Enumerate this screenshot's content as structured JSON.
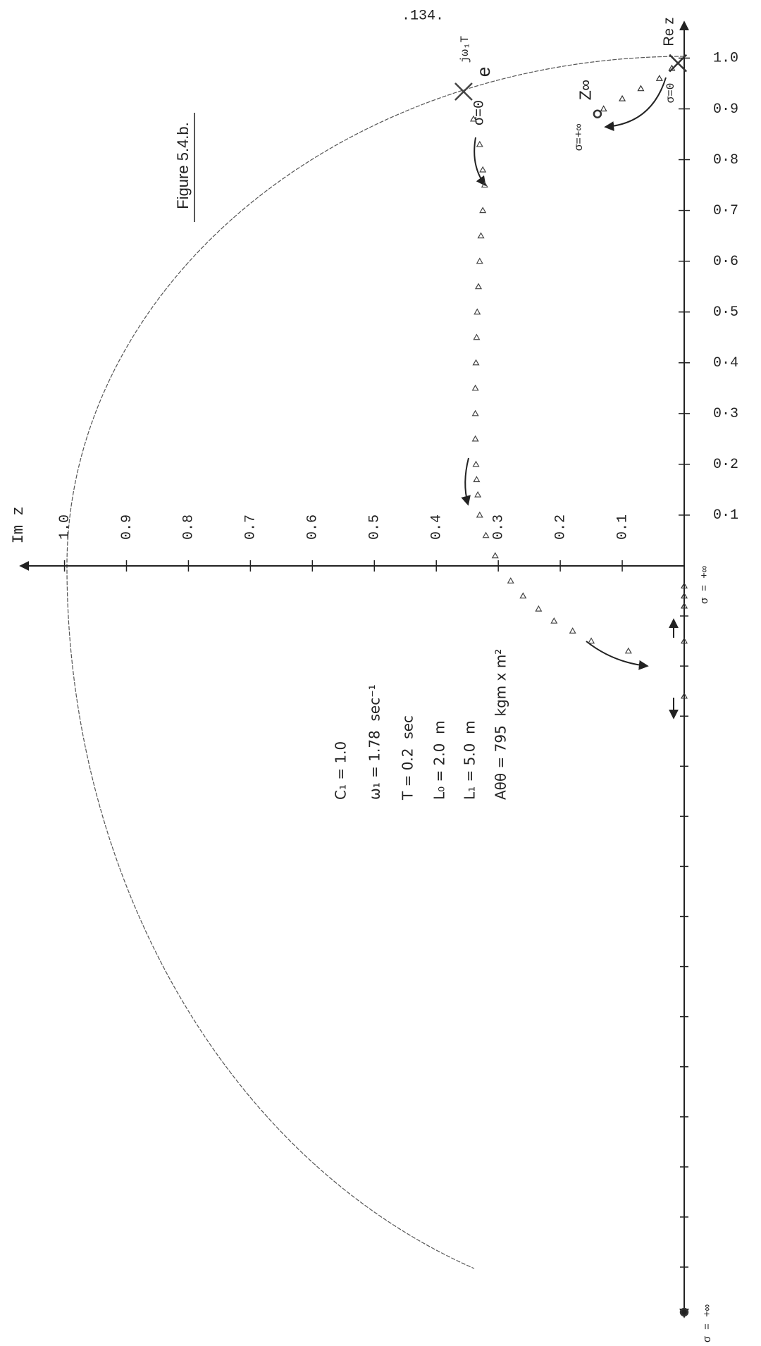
{
  "page_number": ".134.",
  "chart_data": {
    "type": "scatter",
    "title": "Figure 5.4.b.",
    "xlabel": "Im z",
    "ylabel": "Re z",
    "x_direction": "left",
    "xlim": [
      0,
      1.07
    ],
    "ylim": [
      -1.49,
      1.07
    ],
    "xticks": [
      {
        "value": 0.1,
        "label": "0.1"
      },
      {
        "value": 0.2,
        "label": "0.2"
      },
      {
        "value": 0.3,
        "label": "0.3"
      },
      {
        "value": 0.4,
        "label": "0.4"
      },
      {
        "value": 0.5,
        "label": "0.5"
      },
      {
        "value": 0.6,
        "label": "0.6"
      },
      {
        "value": 0.7,
        "label": "0.7"
      },
      {
        "value": 0.8,
        "label": "0.8"
      },
      {
        "value": 0.9,
        "label": "0.9"
      },
      {
        "value": 1.0,
        "label": "1.0"
      }
    ],
    "yticks": [
      {
        "value": 0.1,
        "label": "0·1"
      },
      {
        "value": 0.2,
        "label": "0·2"
      },
      {
        "value": 0.3,
        "label": "0·3"
      },
      {
        "value": 0.4,
        "label": "0·4"
      },
      {
        "value": 0.5,
        "label": "0·5"
      },
      {
        "value": 0.6,
        "label": "0·6"
      },
      {
        "value": 0.7,
        "label": "0·7"
      },
      {
        "value": 0.8,
        "label": "0·8"
      },
      {
        "value": 0.9,
        "label": "0·9"
      },
      {
        "value": 1.0,
        "label": "1.0"
      }
    ],
    "yminorticks": [
      -0.1,
      -0.2,
      -0.3,
      -0.4,
      -0.5,
      -0.6,
      -0.7,
      -0.8,
      -0.9,
      -1.0,
      -1.1,
      -1.2,
      -1.3,
      -1.4
    ],
    "series": [
      {
        "color": "#444444",
        "start_marker": "x",
        "x": [
          0.356,
          0.34,
          0.33,
          0.325,
          0.322,
          0.325,
          0.328,
          0.33,
          0.332,
          0.334,
          0.335,
          0.336,
          0.337,
          0.337,
          0.337,
          0.336,
          0.335,
          0.333,
          0.33,
          0.32,
          0.305,
          0.28,
          0.26,
          0.235,
          0.21,
          0.18,
          0.15,
          0.09
        ],
        "values": [
          0.934,
          0.88,
          0.83,
          0.78,
          0.75,
          0.7,
          0.65,
          0.6,
          0.55,
          0.5,
          0.45,
          0.4,
          0.35,
          0.3,
          0.25,
          0.2,
          0.17,
          0.14,
          0.1,
          0.06,
          0.02,
          -0.03,
          -0.06,
          -0.086,
          -0.11,
          -0.13,
          -0.15,
          -0.17
        ]
      },
      {
        "color": "#333333",
        "start_marker": "x",
        "end_marker": "o",
        "x": [
          0.01,
          0.02,
          0.04,
          0.07,
          0.1,
          0.13,
          0.14
        ],
        "values": [
          0.99,
          0.98,
          0.96,
          0.94,
          0.92,
          0.9,
          0.89
        ]
      },
      {
        "color": "#333333",
        "end_marker": "o",
        "x": [
          0,
          0,
          0,
          0,
          0,
          0
        ],
        "values": [
          -0.04,
          -0.06,
          -0.08,
          -0.15,
          -0.26,
          -1.49
        ]
      }
    ],
    "annotations": [
      "e",
      "jω₁T",
      "σ=0",
      "σ=0",
      "σ=+∞",
      "Z∞",
      "σ = +∞",
      "σ = +∞"
    ],
    "parameters": [
      "C₁ = 1.0",
      "ω₁ = 1.78  sec⁻¹",
      "T = 0.2  sec",
      "L₀ = 2.0  m",
      "L₁ = 5.0  m",
      "Aθθ = 795  kgm x m²"
    ]
  }
}
